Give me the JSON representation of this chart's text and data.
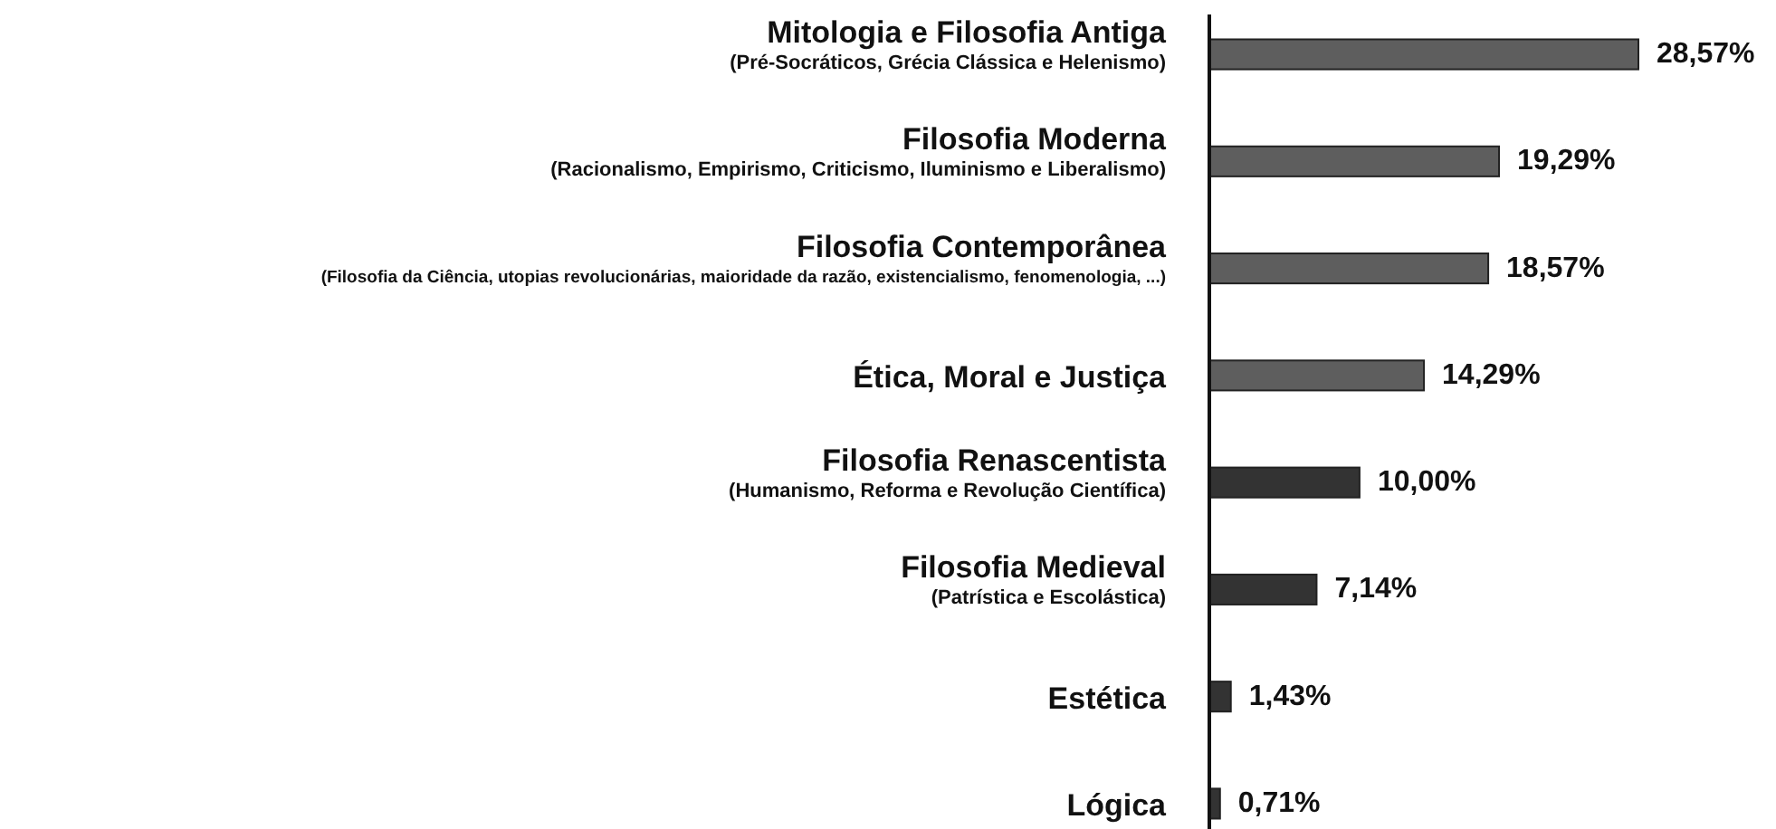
{
  "chart_data": {
    "type": "bar",
    "orientation": "horizontal",
    "categories": [
      "Mitologia e Filosofia Antiga\n(Pré-Socráticos, Grécia Clássica e Helenismo)",
      "Filosofia Moderna\n(Racionalismo, Empirismo, Criticismo, Iluminismo e Liberalismo)",
      "Filosofia Contemporânea\n(Filosofia da Ciência, utopias revolucionárias, maioridade da razão, existencialismo, fenomenologia, ...)",
      "Ética, Moral e Justiça",
      "Filosofia Renascentista\n(Humanismo, Reforma e Revolução Científica)",
      "Filosofia Medieval\n(Patrística e Escolástica)",
      "Estética",
      "Lógica"
    ],
    "values": [
      28.57,
      19.29,
      18.57,
      14.29,
      10.0,
      7.14,
      1.43,
      0.71
    ],
    "value_labels": [
      "28,57%",
      "19,29%",
      "18,57%",
      "14,29%",
      "10,00%",
      "7,14%",
      "1,43%",
      "0,71%"
    ],
    "colors": [
      "#5e5e5e",
      "#5e5e5e",
      "#5e5e5e",
      "#5e5e5e",
      "#333333",
      "#333333",
      "#333333",
      "#333333"
    ],
    "tick_labels": "y"
  }
}
